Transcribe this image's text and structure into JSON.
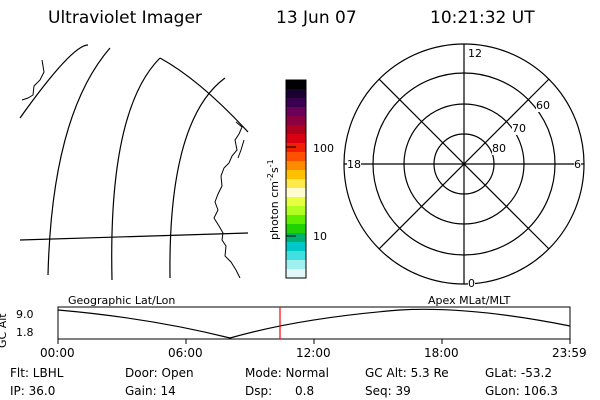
{
  "header": {
    "title": "Ultraviolet Imager",
    "date": "13 Jun 07",
    "time": "10:21:32 UT"
  },
  "colorbar": {
    "label_parts": [
      "photon cm",
      "-2",
      "s",
      "-1"
    ],
    "tick_high": "100",
    "tick_low": "10",
    "colors": [
      "#000000",
      "#1a0030",
      "#3a0050",
      "#6a0058",
      "#8a0040",
      "#b00020",
      "#d80010",
      "#f02000",
      "#ff5000",
      "#ff8c00",
      "#ffc000",
      "#ffe84a",
      "#fffdd0",
      "#e8ff40",
      "#b0ff20",
      "#60ee00",
      "#20d000",
      "#00b070",
      "#00c8c8",
      "#40e0e0",
      "#a0f0f0",
      "#e0f8f8"
    ]
  },
  "polar": {
    "mlt_labels": {
      "top": "12",
      "left": "18",
      "right": "6",
      "bottom": "0"
    },
    "lat_labels": [
      "60",
      "70",
      "80"
    ]
  },
  "timeline": {
    "ylabel": "GC Alt",
    "ymax": "9.0",
    "ymin": "1.8",
    "left_title": "Geographic Lat/Lon",
    "right_title": "Apex MLat/MLT",
    "ticks": [
      "00:00",
      "06:00",
      "12:00",
      "18:00",
      "23:59"
    ],
    "current_marker_color": "#ff0000"
  },
  "footer": {
    "flt": "Flt: LBHL",
    "ip": "IP: 36.0",
    "door": "Door: Open",
    "gain": "Gain: 14",
    "mode": "Mode: Normal",
    "dsp": "Dsp:      0.8",
    "gc_alt": "GC Alt: 5.3 Re",
    "seq": "Seq: 39",
    "glat": "GLat: -53.2",
    "glon": "GLon: 106.3"
  }
}
